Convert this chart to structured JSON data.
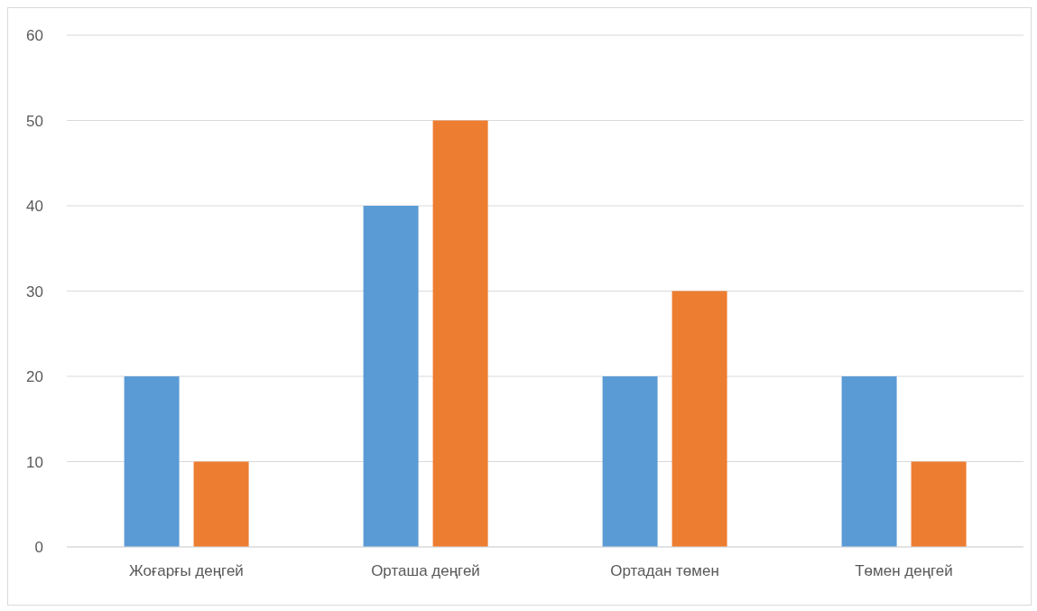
{
  "chart_data": {
    "type": "bar",
    "categories": [
      "Жоғарғы деңгей",
      "Орташа деңгей",
      "Ортадан төмен",
      "Төмен деңгей"
    ],
    "series": [
      {
        "color": "#5b9bd5",
        "values": [
          20,
          40,
          20,
          20
        ]
      },
      {
        "color": "#ed7d31",
        "values": [
          10,
          50,
          30,
          10
        ]
      }
    ],
    "ylim": [
      0,
      60
    ],
    "yticks": [
      0,
      10,
      20,
      30,
      40,
      50,
      60
    ],
    "grid": "y",
    "legend": false
  }
}
